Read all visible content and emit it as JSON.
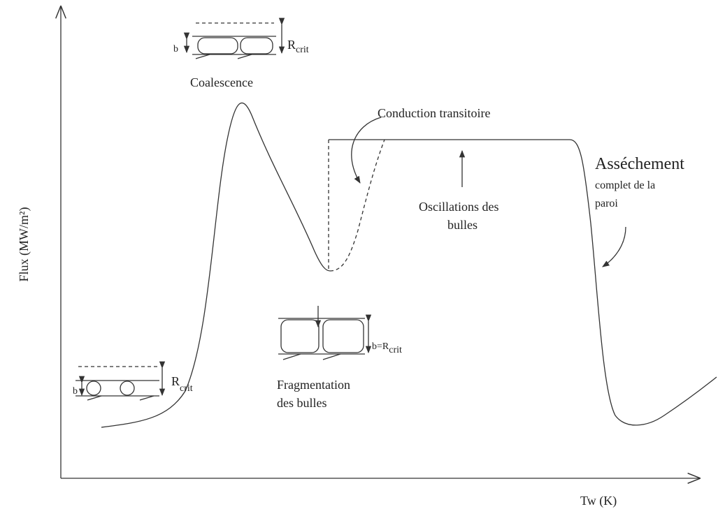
{
  "axes": {
    "y_label": "Flux (MW/m²)",
    "x_label": "Tw (K)"
  },
  "annotations": {
    "coalescence": "Coalescence",
    "conduction": "Conduction transitoire",
    "assechement": [
      "Asséchement",
      "complet de la",
      "paroi"
    ],
    "oscillations": [
      "Oscillations des",
      "bulles"
    ],
    "fragmentation": [
      "Fragmentation",
      "des bulles"
    ]
  },
  "insets": {
    "top": {
      "b": "b",
      "r": "R",
      "r_sub": "crit"
    },
    "middle": {
      "r": "b=R",
      "r_sub": "crit"
    },
    "bottom": {
      "b": "b",
      "r": "R",
      "r_sub": "crit"
    }
  }
}
